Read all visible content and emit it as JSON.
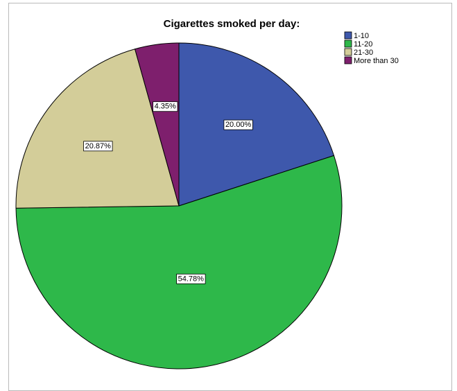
{
  "chart_data": {
    "type": "pie",
    "title": "Cigarettes smoked per day:",
    "start_angle_deg": 0,
    "direction": "clockwise",
    "legend_placement": "top-right",
    "slices": [
      {
        "label": "1-10",
        "value": 20.0,
        "value_label": "20.00%",
        "color": "#3e58ac"
      },
      {
        "label": "11-20",
        "value": 54.78,
        "value_label": "54.78%",
        "color": "#2eb84a"
      },
      {
        "label": "21-30",
        "value": 20.87,
        "value_label": "20.87%",
        "color": "#d3cd99"
      },
      {
        "label": "More than 30",
        "value": 4.35,
        "value_label": "4.35%",
        "color": "#7e1f6d"
      }
    ]
  }
}
